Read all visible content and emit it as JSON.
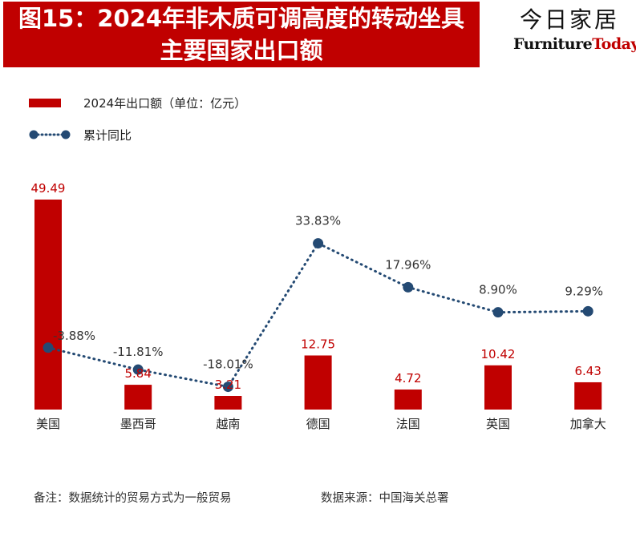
{
  "title": {
    "line1": "图15：2024年非木质可调高度的转动坐具",
    "line2": "主要国家出口额"
  },
  "brand": {
    "name_cn": "今日家居",
    "name_en_part1": "Furniture",
    "name_en_part2": "Today"
  },
  "colors": {
    "bar": "#c00000",
    "line": "#244a73",
    "bar_label": "#c00000",
    "line_label": "#333333"
  },
  "chart_data": {
    "type": "bar+line",
    "categories": [
      "美国",
      "墨西哥",
      "越南",
      "德国",
      "法国",
      "英国",
      "加拿大"
    ],
    "series": [
      {
        "name": "2024年出口额（单位：亿元）",
        "type": "bar",
        "values": [
          49.49,
          5.84,
          3.21,
          12.75,
          4.72,
          10.42,
          6.43
        ],
        "labels": [
          "49.49",
          "5.84",
          "3.21",
          "12.75",
          "4.72",
          "10.42",
          "6.43"
        ]
      },
      {
        "name": "累计同比",
        "type": "line",
        "style": "dotted-with-markers",
        "values": [
          -3.88,
          -11.81,
          -18.01,
          33.83,
          17.96,
          8.9,
          9.29
        ],
        "labels": [
          "-3.88%",
          "-11.81%",
          "-18.01%",
          "33.83%",
          "17.96%",
          "8.90%",
          "9.29%"
        ]
      }
    ],
    "legend_position": "top-left",
    "grid": false
  },
  "notes": {
    "remark": "备注：数据统计的贸易方式为一般贸易",
    "source": "数据来源：中国海关总署"
  }
}
